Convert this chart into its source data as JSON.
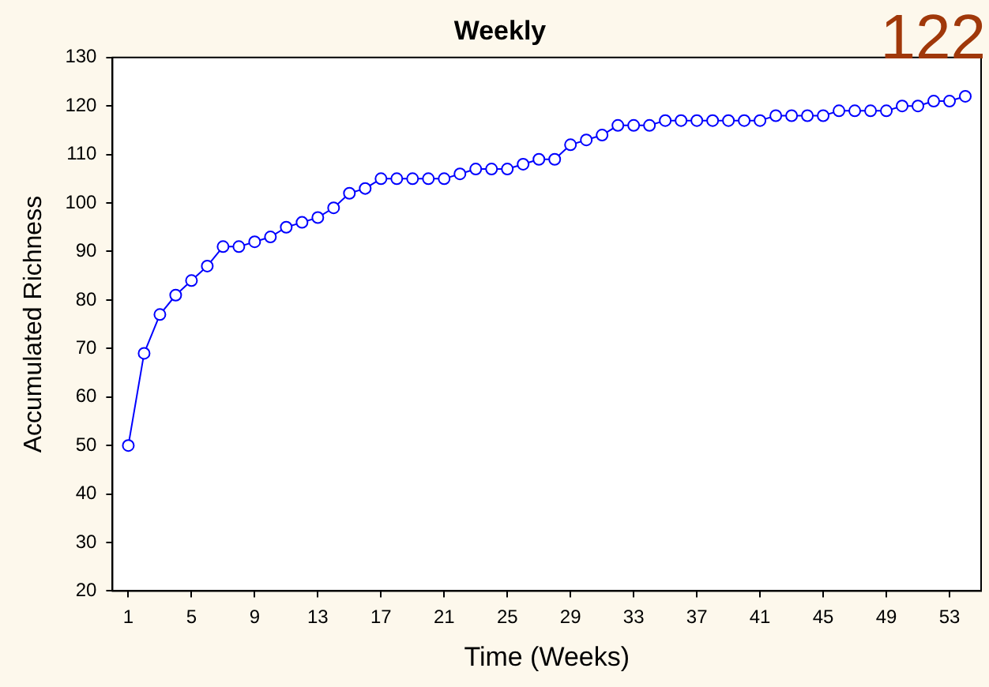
{
  "chart_data": {
    "type": "line",
    "title": "Weekly",
    "xlabel": "Time (Weeks)",
    "ylabel": "Accumulated Richness",
    "annotations": [
      "122"
    ],
    "x": [
      1,
      2,
      3,
      4,
      5,
      6,
      7,
      8,
      9,
      10,
      11,
      12,
      13,
      14,
      15,
      16,
      17,
      18,
      19,
      20,
      21,
      22,
      23,
      24,
      25,
      26,
      27,
      28,
      29,
      30,
      31,
      32,
      33,
      34,
      35,
      36,
      37,
      38,
      39,
      40,
      41,
      42,
      43,
      44,
      45,
      46,
      47,
      48,
      49,
      50,
      51,
      52,
      53,
      54
    ],
    "series": [
      {
        "color": "#0000ff",
        "values": [
          50,
          69,
          77,
          81,
          84,
          87,
          91,
          91,
          92,
          93,
          95,
          96,
          97,
          99,
          102,
          103,
          105,
          105,
          105,
          105,
          105,
          106,
          107,
          107,
          107,
          108,
          109,
          109,
          112,
          113,
          114,
          116,
          116,
          116,
          117,
          117,
          117,
          117,
          117,
          117,
          117,
          118,
          118,
          118,
          118,
          119,
          119,
          119,
          119,
          120,
          120,
          121,
          121,
          122
        ]
      }
    ],
    "xlim": [
      0,
      55
    ],
    "xticks": [
      1,
      5,
      9,
      13,
      17,
      21,
      25,
      29,
      33,
      37,
      41,
      45,
      49,
      53
    ],
    "ylim": [
      20,
      130
    ],
    "yticks": [
      20,
      30,
      40,
      50,
      60,
      70,
      80,
      90,
      100,
      110,
      120,
      130
    ],
    "grid": false,
    "legend": false,
    "marker": "circle",
    "line_style": "solid"
  }
}
